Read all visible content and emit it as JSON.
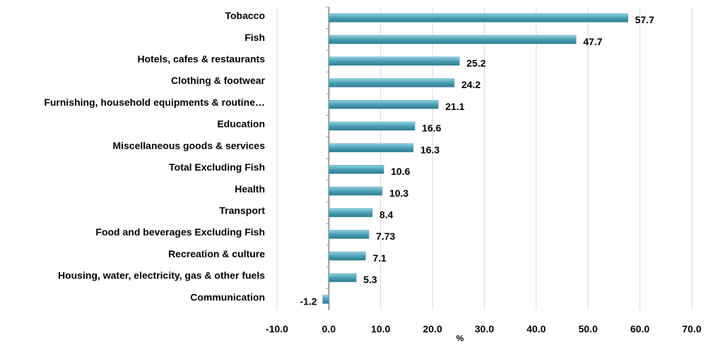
{
  "chart_data": {
    "type": "bar",
    "orientation": "horizontal",
    "categories": [
      "Tobacco",
      "Fish",
      "Hotels, cafes & restaurants",
      "Clothing & footwear",
      "Furnishing, household equipments &  routine…",
      "Education",
      "Miscellaneous goods & services",
      "Total Excluding Fish",
      "Health",
      "Transport",
      "Food and beverages Excluding Fish",
      "Recreation & culture",
      "Housing, water, electricity, gas & other fuels",
      "Communication"
    ],
    "values": [
      57.7,
      47.7,
      25.2,
      24.2,
      21.1,
      16.6,
      16.3,
      10.6,
      10.3,
      8.4,
      7.73,
      7.1,
      5.3,
      -1.2
    ],
    "color": "#4a9fb5",
    "xlabel": "%",
    "xlim": [
      -10,
      70
    ],
    "xticks": [
      {
        "value": -10,
        "label": "-10.0"
      },
      {
        "value": 0,
        "label": "0.0"
      },
      {
        "value": 10,
        "label": "10.0"
      },
      {
        "value": 20,
        "label": "20.0"
      },
      {
        "value": 30,
        "label": "30.0"
      },
      {
        "value": 40,
        "label": "40.0"
      },
      {
        "value": 50,
        "label": "50.0"
      },
      {
        "value": 60,
        "label": "60.0"
      },
      {
        "value": 70,
        "label": "70.0"
      }
    ],
    "grid": true
  }
}
